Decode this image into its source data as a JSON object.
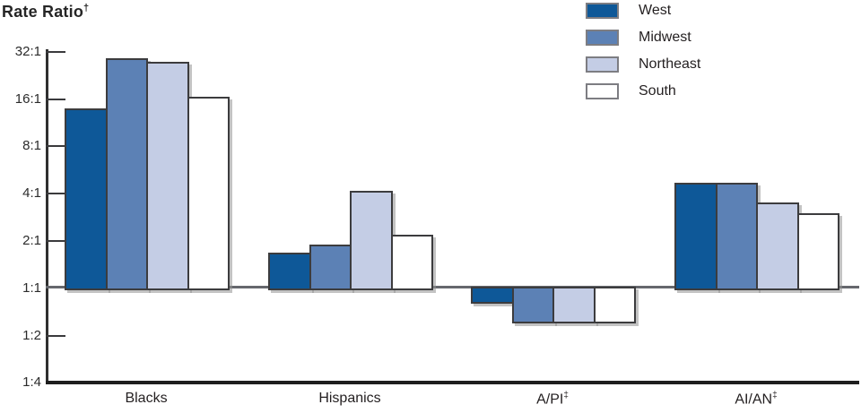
{
  "figure": {
    "title": {
      "text": "Rate Ratio",
      "sup": "†"
    }
  },
  "legend": {
    "items": [
      "West",
      "Midwest",
      "Northeast",
      "South"
    ]
  },
  "chart_data": {
    "type": "bar",
    "scale": "log2",
    "title": "Rate Ratio†",
    "categories": [
      "Blacks",
      "Hispanics",
      "A/PI‡",
      "AI/AN‡"
    ],
    "series": [
      {
        "name": "West",
        "color": "#0e5898",
        "values": [
          14.0,
          1.7,
          0.8,
          4.7
        ]
      },
      {
        "name": "Midwest",
        "color": "#5c81b5",
        "values": [
          29.0,
          1.9,
          0.6,
          4.7
        ]
      },
      {
        "name": "Northeast",
        "color": "#c4cde5",
        "values": [
          27.5,
          4.2,
          0.6,
          3.5
        ]
      },
      {
        "name": "South",
        "color": "#ffffff",
        "values": [
          16.5,
          2.2,
          0.6,
          3.0
        ]
      }
    ],
    "y_axis": {
      "label": "Rate Ratio†",
      "ticks": [
        "32:1",
        "16:1",
        "8:1",
        "4:1",
        "2:1",
        "1:1",
        "1:2",
        "1:4"
      ],
      "baseline": "1:1",
      "range": [
        "1:4",
        "32:1"
      ]
    },
    "x_axis": {
      "label": ""
    },
    "legend_position": "top-center",
    "grid": false,
    "colors": {
      "bar_outline": "#3c3c3e",
      "axis": "#2f2f2f",
      "baseline_gray": "#66686d",
      "bottom_axis_black": "#1e1e1e",
      "text": "#231f20"
    }
  }
}
